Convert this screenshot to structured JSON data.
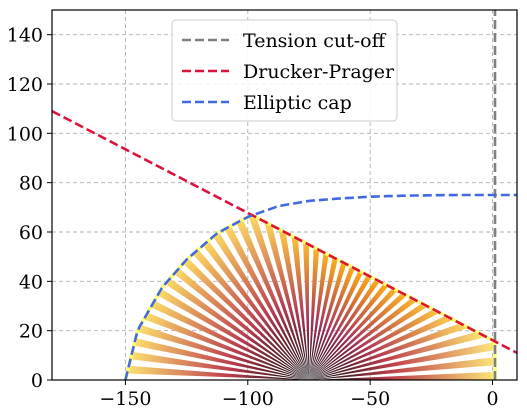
{
  "chart_data": {
    "type": "line",
    "title": "",
    "xlabel": "",
    "ylabel": "",
    "xlim": [
      -180,
      10
    ],
    "ylim": [
      0,
      150
    ],
    "xticks": [
      -150,
      -100,
      -50,
      0
    ],
    "yticks": [
      0,
      20,
      40,
      60,
      80,
      100,
      120,
      140
    ],
    "grid": true,
    "legend_position": "top-center",
    "series": [
      {
        "name": "Tension cut-off",
        "color": "#808080",
        "style": "dashed",
        "x": [
          1,
          1
        ],
        "y": [
          0,
          150
        ]
      },
      {
        "name": "Drucker-Prager",
        "color": "#dc143c",
        "style": "dashed",
        "x": [
          -180,
          10
        ],
        "y": [
          109,
          11
        ]
      },
      {
        "name": "Elliptic cap",
        "color": "#4169e1",
        "style": "dashed",
        "x": [
          -150,
          -145,
          -135,
          -125,
          -112.5,
          -100,
          -87.5,
          -75,
          -62.5,
          -50,
          -37.5,
          -25,
          -12.5,
          0,
          10
        ],
        "y": [
          0,
          20.2,
          37.5,
          48.8,
          59.5,
          66.1,
          70.5,
          72.6,
          73.6,
          74.3,
          74.7,
          74.9,
          75.0,
          75.0,
          75.0
        ]
      }
    ],
    "fan": {
      "apex": [
        -75,
        0
      ],
      "colormap": "inferno",
      "envelope_edge": "#ffff66"
    }
  }
}
